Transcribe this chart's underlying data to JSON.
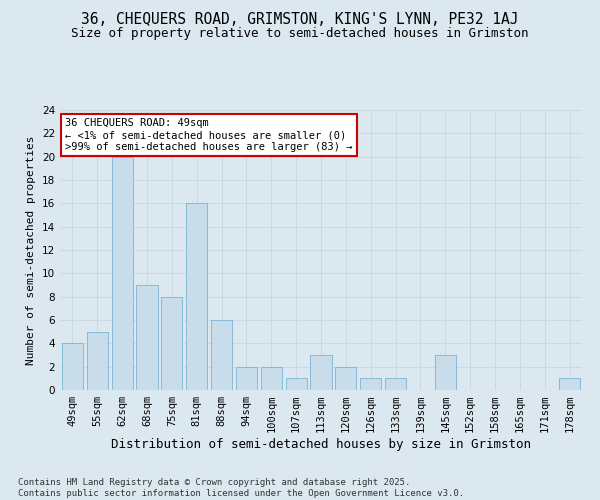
{
  "title": "36, CHEQUERS ROAD, GRIMSTON, KING'S LYNN, PE32 1AJ",
  "subtitle": "Size of property relative to semi-detached houses in Grimston",
  "xlabel": "Distribution of semi-detached houses by size in Grimston",
  "ylabel": "Number of semi-detached properties",
  "categories": [
    "49sqm",
    "55sqm",
    "62sqm",
    "68sqm",
    "75sqm",
    "81sqm",
    "88sqm",
    "94sqm",
    "100sqm",
    "107sqm",
    "113sqm",
    "120sqm",
    "126sqm",
    "133sqm",
    "139sqm",
    "145sqm",
    "152sqm",
    "158sqm",
    "165sqm",
    "171sqm",
    "178sqm"
  ],
  "values": [
    4,
    5,
    20,
    9,
    8,
    16,
    6,
    2,
    2,
    1,
    3,
    2,
    1,
    1,
    0,
    3,
    0,
    0,
    0,
    0,
    1
  ],
  "bar_color": "#c9dcea",
  "bar_edge_color": "#7ab4d4",
  "annotation_text": "36 CHEQUERS ROAD: 49sqm\n← <1% of semi-detached houses are smaller (0)\n>99% of semi-detached houses are larger (83) →",
  "annotation_box_color": "#ffffff",
  "annotation_box_edge_color": "#cc0000",
  "ylim": [
    0,
    24
  ],
  "yticks": [
    0,
    2,
    4,
    6,
    8,
    10,
    12,
    14,
    16,
    18,
    20,
    22,
    24
  ],
  "grid_color": "#c8d4e0",
  "bg_color": "#dce8f0",
  "footer": "Contains HM Land Registry data © Crown copyright and database right 2025.\nContains public sector information licensed under the Open Government Licence v3.0.",
  "title_fontsize": 10.5,
  "subtitle_fontsize": 9,
  "xlabel_fontsize": 9,
  "ylabel_fontsize": 8,
  "tick_fontsize": 7.5,
  "annotation_fontsize": 7.5,
  "footer_fontsize": 6.5
}
